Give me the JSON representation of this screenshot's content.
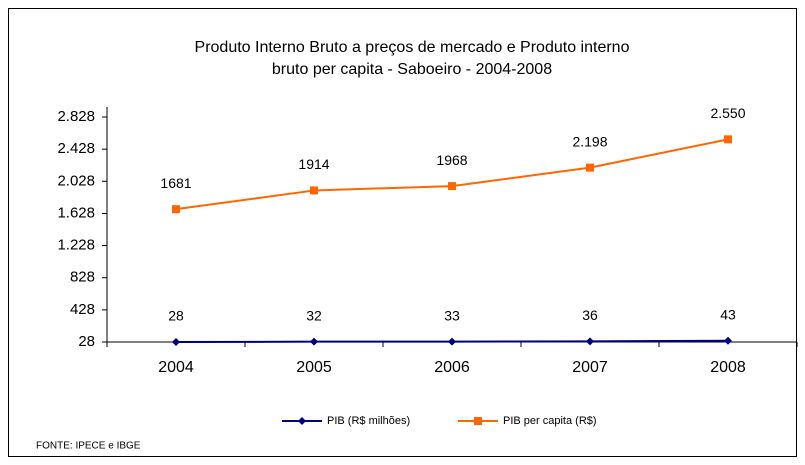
{
  "chart_data": {
    "type": "line",
    "title": [
      "Produto Interno Bruto a preços de mercado e  Produto interno",
      "bruto per capita - Saboeiro - 2004-2008"
    ],
    "categories": [
      "2004",
      "2005",
      "2006",
      "2007",
      "2008"
    ],
    "series": [
      {
        "name": "PIB (R$ milhões)",
        "color": "#000080",
        "marker": "diamond",
        "values": [
          28,
          32,
          33,
          36,
          43
        ]
      },
      {
        "name": "PIB per capita (R$)",
        "color": "#ff6600",
        "marker": "square",
        "values": [
          1681,
          1914,
          1968,
          2198,
          2550
        ],
        "value_labels": [
          "1681",
          "1914",
          "1968",
          "2.198",
          "2.550"
        ]
      }
    ],
    "ylim": [
      28,
      2828
    ],
    "yticks": [
      28,
      428,
      828,
      {
        "value": 1228,
        "label": "1.228"
      },
      {
        "value": 1628,
        "label": "1.628"
      },
      {
        "value": 2028,
        "label": "2.028"
      },
      {
        "value": 2428,
        "label": "2.428"
      },
      {
        "value": 2828,
        "label": "2.828"
      }
    ],
    "legend": "bottom",
    "source": "FONTE: IPECE e IBGE"
  }
}
